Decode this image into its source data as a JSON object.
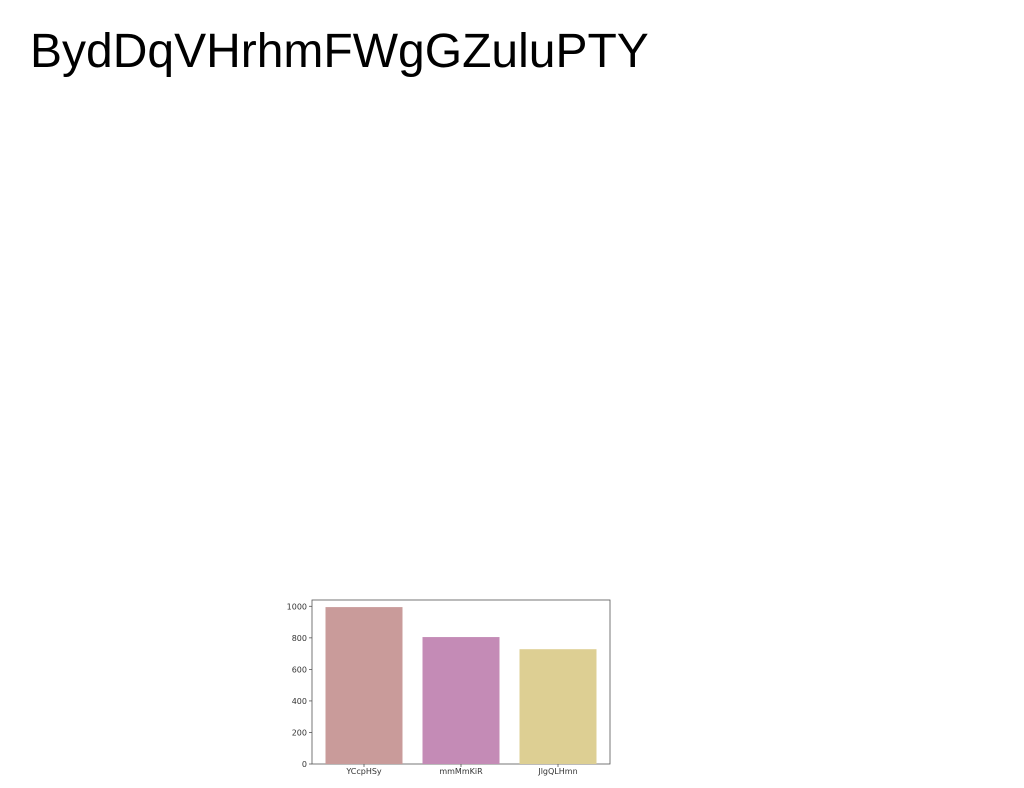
{
  "page": {
    "title": "BydDqVHrhmFWgGZuluPTY"
  },
  "chart_data": {
    "type": "bar",
    "title": "",
    "xlabel": "",
    "ylabel": "",
    "categories": [
      "YCcpHSy",
      "mmMmKiR",
      "JlgQLHmn"
    ],
    "values": [
      995,
      805,
      728
    ],
    "colors": [
      "#c99b9a",
      "#c48bb6",
      "#ddcf93"
    ],
    "ylim": [
      0,
      1040
    ],
    "yticks": [
      0,
      200,
      400,
      600,
      800,
      1000
    ],
    "grid": false,
    "legend": "none"
  }
}
